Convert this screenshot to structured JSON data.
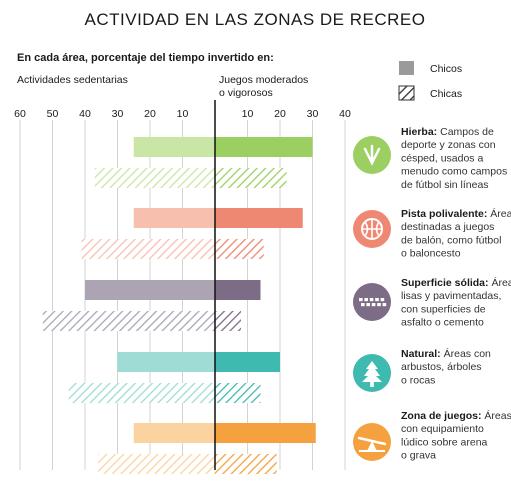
{
  "title": "ACTIVIDAD EN LAS ZONAS DE RECREO",
  "subtitle": "En cada área, porcentaje del tiempo invertido en:",
  "left_axis_label": "Actividades sedentarias",
  "right_axis_label": [
    "Juegos moderados",
    "o vigorosos"
  ],
  "legend": [
    {
      "label": "Chicos",
      "style": "solid"
    },
    {
      "label": "Chicas",
      "style": "hatched"
    }
  ],
  "chart_data": {
    "type": "bar",
    "orientation": "horizontal-diverging",
    "x_ticks": [
      "60",
      "50",
      "40",
      "30",
      "20",
      "10",
      "",
      "10",
      "20",
      "30",
      "40"
    ],
    "xlim": [
      -60,
      40
    ],
    "grid": true,
    "categories": [
      "Hierba",
      "Pista polivalente",
      "Superficie sólida",
      "Natural",
      "Zona de juegos"
    ],
    "series": [
      {
        "name": "Chicos",
        "sedentary": [
          25,
          25,
          40,
          30,
          25
        ],
        "vigorous": [
          30,
          27,
          14,
          20,
          31
        ]
      },
      {
        "name": "Chicas",
        "sedentary": [
          37,
          41,
          53,
          45,
          36
        ],
        "vigorous": [
          22,
          15,
          8,
          14,
          19
        ]
      }
    ],
    "colors": {
      "Hierba": {
        "light": "#c9e6a6",
        "dark": "#9ccf61"
      },
      "Pista polivalente": {
        "light": "#f7bfae",
        "dark": "#ee8872"
      },
      "Superficie sólida": {
        "light": "#aca4b3",
        "dark": "#7c6c86"
      },
      "Natural": {
        "light": "#9fdcd6",
        "dark": "#3fbab0"
      },
      "Zona de juegos": {
        "light": "#fbd3a1",
        "dark": "#f5a13f"
      }
    }
  },
  "zones": [
    {
      "name": "Hierba:",
      "desc": [
        " Campos de",
        "deporte y zonas con",
        "césped, usados a",
        "menudo como campos",
        "de fútbol sin líneas"
      ],
      "icon": "grass-icon",
      "color": "#9ccf61"
    },
    {
      "name": "Pista polivalente:",
      "desc": [
        " Áreas",
        "destinadas a juegos",
        "de balón, como fútbol",
        "o baloncesto"
      ],
      "icon": "basketball-icon",
      "color": "#ee8872"
    },
    {
      "name": "Superficie sólida:",
      "desc": [
        " Áreas",
        "lisas y pavimentadas,",
        "con superficies de",
        "asfalto o cemento"
      ],
      "icon": "pavement-icon",
      "color": "#7c6c86"
    },
    {
      "name": "Natural:",
      "desc": [
        " Áreas con",
        "arbustos, árboles",
        "o rocas"
      ],
      "icon": "tree-icon",
      "color": "#3fbab0"
    },
    {
      "name": "Zona de juegos:",
      "desc": [
        " Áreas",
        "con equipamiento",
        "lúdico sobre arena",
        "o grava"
      ],
      "icon": "seesaw-icon",
      "color": "#f5a13f"
    }
  ]
}
